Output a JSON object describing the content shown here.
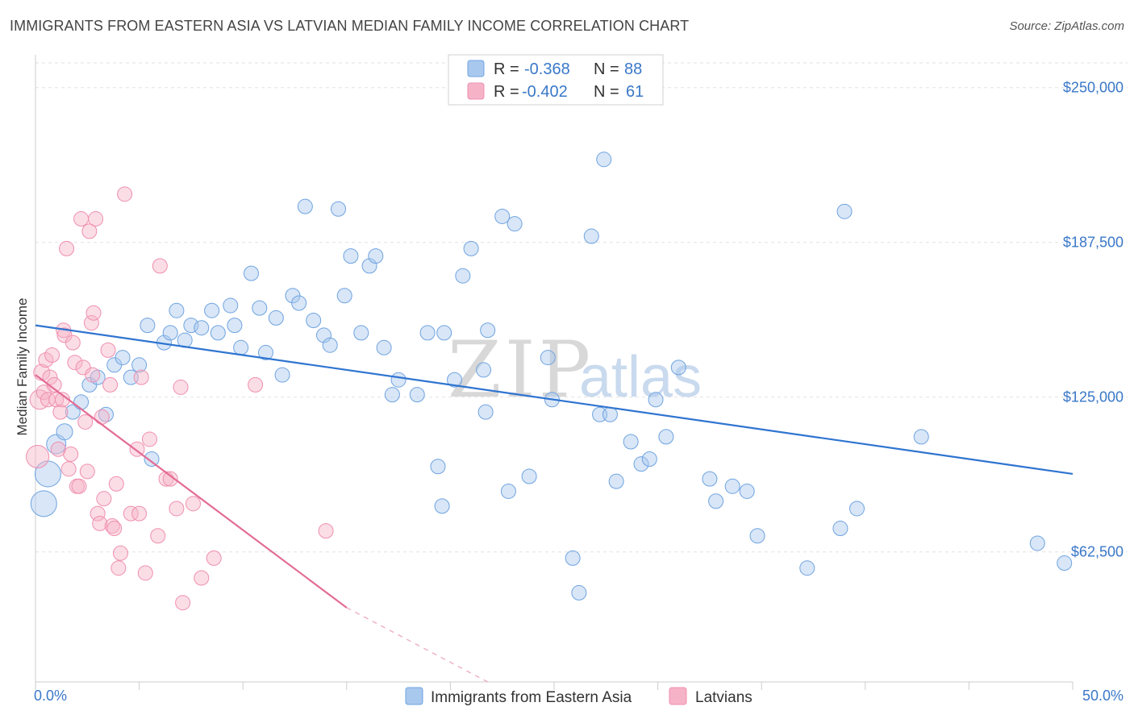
{
  "header": {
    "title": "IMMIGRANTS FROM EASTERN ASIA VS LATVIAN MEDIAN FAMILY INCOME CORRELATION CHART",
    "source": "Source: ZipAtlas.com"
  },
  "watermark": {
    "zip": "ZIP",
    "atlas": "atlas"
  },
  "legend": {
    "rows": [
      {
        "r_label": "R = ",
        "r_value": "-0.368",
        "n_label": "N = ",
        "n_value": "88",
        "color": "#a9c8ee"
      },
      {
        "r_label": "R = ",
        "r_value": "-0.402",
        "n_label": "N = ",
        "n_value": "61",
        "color": "#f6b3c8"
      }
    ]
  },
  "bottom_legend": [
    {
      "label": "Immigrants from Eastern Asia",
      "color": "#a9c8ee"
    },
    {
      "label": "Latvians",
      "color": "#f6b3c8"
    }
  ],
  "chart_data": {
    "type": "scatter",
    "ylabel": "Median Family Income",
    "xlim": [
      0,
      50
    ],
    "ylim": [
      10000,
      260000
    ],
    "x_tick_labels": {
      "min": "0.0%",
      "max": "50.0%"
    },
    "y_ticks": [
      {
        "value": 62500,
        "label": "$62,500"
      },
      {
        "value": 125000,
        "label": "$125,000"
      },
      {
        "value": 187500,
        "label": "$187,500"
      },
      {
        "value": 250000,
        "label": "$250,000"
      }
    ],
    "grid": true,
    "legend_position": "top-center",
    "series": [
      {
        "name": "Immigrants from Eastern Asia",
        "color": "#6fa3e0",
        "fill": "#a9c8ee",
        "trend": {
          "x": [
            0,
            50
          ],
          "y": [
            154000,
            94000
          ]
        },
        "points": [
          [
            0.4,
            82000,
            16
          ],
          [
            0.6,
            94000,
            16
          ],
          [
            1.0,
            106000,
            12
          ],
          [
            1.4,
            111000,
            10
          ],
          [
            1.8,
            119000,
            9
          ],
          [
            2.2,
            123000,
            9
          ],
          [
            2.6,
            130000,
            9
          ],
          [
            3.0,
            133000,
            9
          ],
          [
            3.4,
            118000,
            9
          ],
          [
            3.8,
            138000,
            9
          ],
          [
            4.2,
            141000,
            9
          ],
          [
            4.6,
            133000,
            9
          ],
          [
            5.0,
            138000,
            9
          ],
          [
            5.4,
            154000,
            9
          ],
          [
            5.6,
            100000,
            9
          ],
          [
            6.2,
            147000,
            9
          ],
          [
            6.5,
            151000,
            9
          ],
          [
            6.8,
            160000,
            9
          ],
          [
            7.2,
            148000,
            9
          ],
          [
            7.5,
            154000,
            9
          ],
          [
            8.0,
            153000,
            9
          ],
          [
            8.5,
            160000,
            9
          ],
          [
            8.8,
            151000,
            9
          ],
          [
            9.4,
            162000,
            9
          ],
          [
            9.6,
            154000,
            9
          ],
          [
            9.9,
            145000,
            9
          ],
          [
            10.4,
            175000,
            9
          ],
          [
            10.8,
            161000,
            9
          ],
          [
            11.1,
            143000,
            9
          ],
          [
            11.6,
            157000,
            9
          ],
          [
            11.9,
            134000,
            9
          ],
          [
            12.4,
            166000,
            9
          ],
          [
            12.7,
            163000,
            9
          ],
          [
            13.0,
            202000,
            9
          ],
          [
            13.4,
            156000,
            9
          ],
          [
            13.9,
            150000,
            9
          ],
          [
            14.2,
            146000,
            9
          ],
          [
            14.6,
            201000,
            9
          ],
          [
            14.9,
            166000,
            9
          ],
          [
            15.2,
            182000,
            9
          ],
          [
            15.7,
            151000,
            9
          ],
          [
            16.1,
            178000,
            9
          ],
          [
            16.4,
            182000,
            9
          ],
          [
            16.8,
            145000,
            9
          ],
          [
            17.2,
            126000,
            9
          ],
          [
            17.5,
            132000,
            9
          ],
          [
            18.4,
            126000,
            9
          ],
          [
            18.9,
            151000,
            9
          ],
          [
            19.4,
            97000,
            9
          ],
          [
            19.6,
            81000,
            9
          ],
          [
            19.7,
            151000,
            9
          ],
          [
            20.2,
            132000,
            9
          ],
          [
            20.6,
            174000,
            9
          ],
          [
            21.0,
            185000,
            9
          ],
          [
            21.6,
            136000,
            9
          ],
          [
            21.7,
            119000,
            9
          ],
          [
            21.8,
            152000,
            9
          ],
          [
            22.5,
            198000,
            9
          ],
          [
            22.8,
            87000,
            9
          ],
          [
            23.1,
            195000,
            9
          ],
          [
            23.8,
            93000,
            9
          ],
          [
            24.7,
            141000,
            9
          ],
          [
            24.9,
            124000,
            9
          ],
          [
            25.9,
            60000,
            9
          ],
          [
            26.2,
            46000,
            9
          ],
          [
            26.8,
            190000,
            9
          ],
          [
            27.2,
            118000,
            9
          ],
          [
            27.4,
            221000,
            9
          ],
          [
            27.7,
            118000,
            9
          ],
          [
            28.0,
            91000,
            9
          ],
          [
            28.7,
            107000,
            9
          ],
          [
            29.2,
            98000,
            9
          ],
          [
            29.6,
            100000,
            9
          ],
          [
            29.9,
            124000,
            9
          ],
          [
            30.4,
            109000,
            9
          ],
          [
            31.0,
            137000,
            9
          ],
          [
            32.5,
            92000,
            9
          ],
          [
            32.8,
            83000,
            9
          ],
          [
            33.6,
            89000,
            9
          ],
          [
            34.3,
            87000,
            9
          ],
          [
            34.8,
            69000,
            9
          ],
          [
            37.2,
            56000,
            9
          ],
          [
            38.8,
            72000,
            9
          ],
          [
            39.0,
            200000,
            9
          ],
          [
            39.6,
            80000,
            9
          ],
          [
            42.7,
            109000,
            9
          ],
          [
            48.3,
            66000,
            9
          ],
          [
            49.6,
            58000,
            9
          ]
        ]
      },
      {
        "name": "Latvians",
        "color": "#ef8fb0",
        "fill": "#f6b3c8",
        "trend": {
          "x": [
            0,
            15
          ],
          "y": [
            134000,
            40000
          ]
        },
        "trend_dashed": {
          "x": [
            15,
            21.8
          ],
          "y": [
            40000,
            10000
          ]
        },
        "points": [
          [
            0.1,
            101000,
            14
          ],
          [
            0.2,
            124000,
            12
          ],
          [
            0.3,
            135000,
            10
          ],
          [
            0.4,
            127000,
            9
          ],
          [
            0.5,
            140000,
            9
          ],
          [
            0.6,
            124000,
            9
          ],
          [
            0.7,
            133000,
            9
          ],
          [
            0.8,
            142000,
            9
          ],
          [
            0.9,
            130000,
            9
          ],
          [
            1.0,
            124000,
            9
          ],
          [
            1.1,
            104000,
            9
          ],
          [
            1.2,
            119000,
            9
          ],
          [
            1.3,
            124000,
            9
          ],
          [
            1.35,
            152000,
            9
          ],
          [
            1.4,
            150000,
            9
          ],
          [
            1.5,
            185000,
            9
          ],
          [
            1.6,
            96000,
            9
          ],
          [
            1.7,
            102000,
            9
          ],
          [
            1.8,
            147000,
            9
          ],
          [
            1.9,
            139000,
            9
          ],
          [
            2.0,
            89000,
            9
          ],
          [
            2.1,
            89000,
            9
          ],
          [
            2.2,
            197000,
            9
          ],
          [
            2.3,
            137000,
            9
          ],
          [
            2.4,
            115000,
            9
          ],
          [
            2.5,
            95000,
            9
          ],
          [
            2.6,
            192000,
            9
          ],
          [
            2.7,
            155000,
            9
          ],
          [
            2.75,
            134000,
            9
          ],
          [
            2.8,
            159000,
            9
          ],
          [
            2.9,
            197000,
            9
          ],
          [
            3.0,
            78000,
            9
          ],
          [
            3.1,
            74000,
            9
          ],
          [
            3.2,
            117000,
            9
          ],
          [
            3.3,
            84000,
            9
          ],
          [
            3.5,
            144000,
            9
          ],
          [
            3.6,
            130000,
            9
          ],
          [
            3.7,
            73000,
            9
          ],
          [
            3.8,
            72000,
            9
          ],
          [
            3.9,
            90000,
            9
          ],
          [
            4.0,
            56000,
            9
          ],
          [
            4.1,
            62000,
            9
          ],
          [
            4.3,
            207000,
            9
          ],
          [
            4.6,
            78000,
            9
          ],
          [
            4.9,
            104000,
            9
          ],
          [
            5.0,
            78000,
            9
          ],
          [
            5.1,
            133000,
            9
          ],
          [
            5.3,
            54000,
            9
          ],
          [
            5.5,
            108000,
            9
          ],
          [
            5.9,
            69000,
            9
          ],
          [
            6.0,
            178000,
            9
          ],
          [
            6.3,
            92000,
            9
          ],
          [
            6.5,
            92000,
            9
          ],
          [
            6.8,
            80000,
            9
          ],
          [
            7.0,
            129000,
            9
          ],
          [
            7.1,
            42000,
            9
          ],
          [
            7.6,
            82000,
            9
          ],
          [
            8.0,
            52000,
            9
          ],
          [
            8.6,
            60000,
            9
          ],
          [
            10.6,
            130000,
            9
          ],
          [
            14.0,
            71000,
            9
          ]
        ]
      }
    ]
  }
}
